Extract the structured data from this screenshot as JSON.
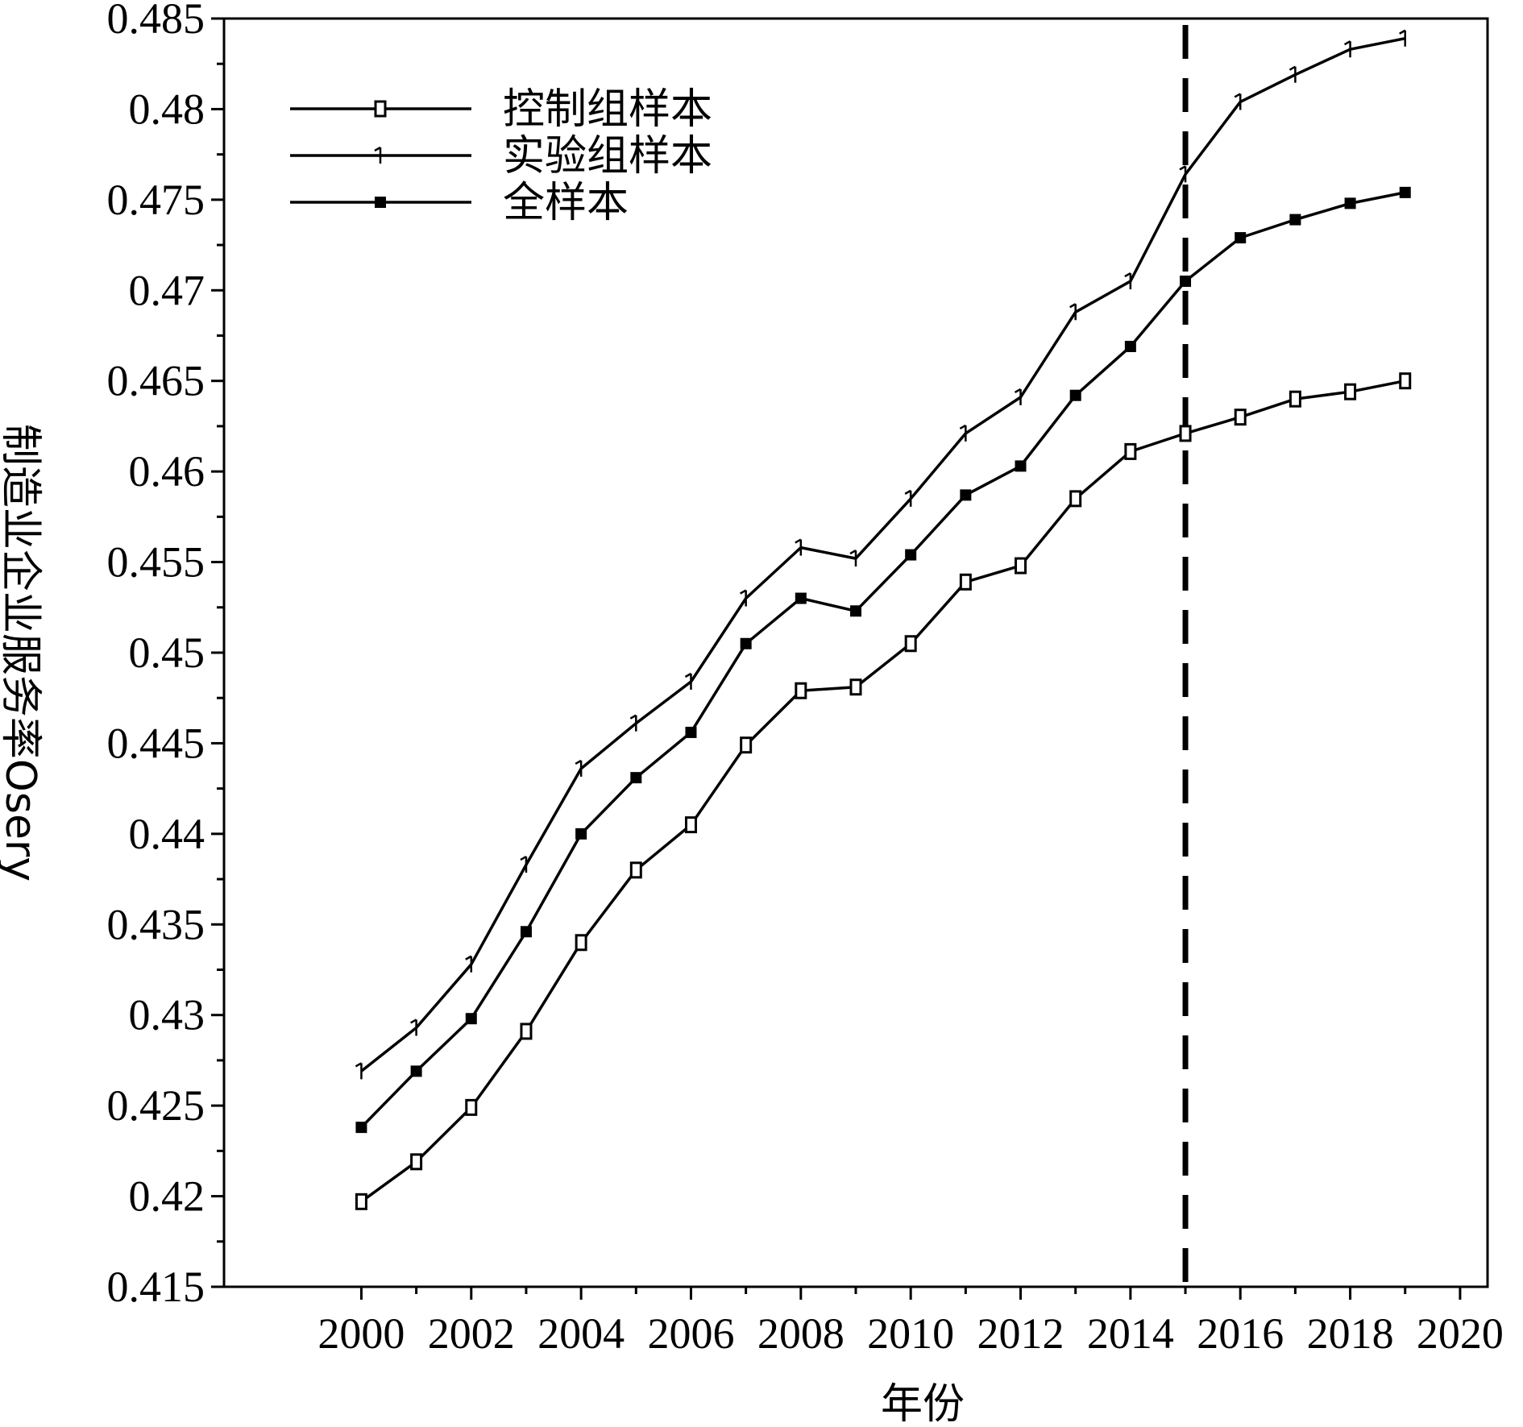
{
  "chart_data": {
    "type": "line",
    "title": "",
    "xlabel": "年份",
    "ylabel": "制造业企业服务率Osery",
    "xlim": [
      1997.5,
      2020.5
    ],
    "ylim": [
      0.415,
      0.485
    ],
    "xticks": [
      2000,
      2002,
      2004,
      2006,
      2008,
      2010,
      2012,
      2014,
      2016,
      2018,
      2020
    ],
    "yticks": [
      0.415,
      0.42,
      0.425,
      0.43,
      0.435,
      0.44,
      0.445,
      0.45,
      0.455,
      0.46,
      0.465,
      0.47,
      0.475,
      0.48,
      0.485
    ],
    "x": [
      2000,
      2001,
      2002,
      2003,
      2004,
      2005,
      2006,
      2007,
      2008,
      2009,
      2010,
      2011,
      2012,
      2013,
      2014,
      2015,
      2016,
      2017,
      2018,
      2019
    ],
    "series": [
      {
        "name": "控制组样本",
        "marker": "open-square",
        "values": [
          0.4197,
          0.4219,
          0.4249,
          0.4291,
          0.434,
          0.438,
          0.4405,
          0.4449,
          0.4479,
          0.4481,
          0.4505,
          0.4539,
          0.4548,
          0.4585,
          0.4611,
          0.4621,
          0.463,
          0.464,
          0.4644,
          0.465
        ]
      },
      {
        "name": "实验组样本",
        "marker": "tick",
        "values": [
          0.4269,
          0.4293,
          0.4328,
          0.4383,
          0.4436,
          0.4461,
          0.4484,
          0.453,
          0.4558,
          0.4552,
          0.4585,
          0.4621,
          0.4641,
          0.4688,
          0.4705,
          0.4764,
          0.4804,
          0.4819,
          0.4833,
          0.4839
        ]
      },
      {
        "name": "全样本",
        "marker": "filled-square",
        "values": [
          0.4238,
          0.4269,
          0.4298,
          0.4346,
          0.44,
          0.4431,
          0.4456,
          0.4505,
          0.453,
          0.4523,
          0.4554,
          0.4587,
          0.4603,
          0.4642,
          0.4669,
          0.4705,
          0.4729,
          0.4739,
          0.4748,
          0.4754
        ]
      }
    ],
    "annotations": [
      {
        "type": "vertical-dashed-line",
        "x": 2015
      }
    ],
    "grid": false,
    "legend": "top-left",
    "colors": {
      "line": "#000000",
      "background": "#ffffff"
    }
  }
}
